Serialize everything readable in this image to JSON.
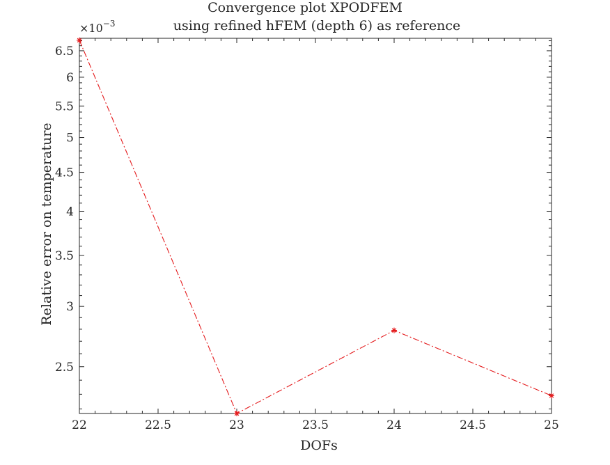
{
  "chart_data": {
    "type": "line",
    "title": "Convergence plot XPODFEM",
    "subtitle": "using refined hFEM (depth 6) as reference",
    "xlabel": "DOFs",
    "ylabel": "Relative error on temperature",
    "y_scale": "log",
    "y_exponent_label": "×10^-3",
    "xlim": [
      22,
      25
    ],
    "ylim": [
      0.00217,
      0.00675
    ],
    "x_ticks": [
      22,
      22.5,
      23,
      23.5,
      24,
      24.5,
      25
    ],
    "x_tick_labels": [
      "22",
      "22.5",
      "23",
      "23.5",
      "24",
      "24.5",
      "25"
    ],
    "y_ticks": [
      0.0025,
      0.003,
      0.0035,
      0.004,
      0.0045,
      0.005,
      0.0055,
      0.006,
      0.0065
    ],
    "y_tick_labels": [
      "2.5",
      "3",
      "3.5",
      "4",
      "4.5",
      "5",
      "5.5",
      "6",
      "6.5"
    ],
    "grid": false,
    "series": [
      {
        "x": [
          22,
          23,
          24,
          25
        ],
        "y": [
          0.00671,
          0.00217,
          0.00279,
          0.00229
        ],
        "color": "#e41a1c",
        "line_style": "dash-dot",
        "marker": "asterisk"
      }
    ]
  }
}
